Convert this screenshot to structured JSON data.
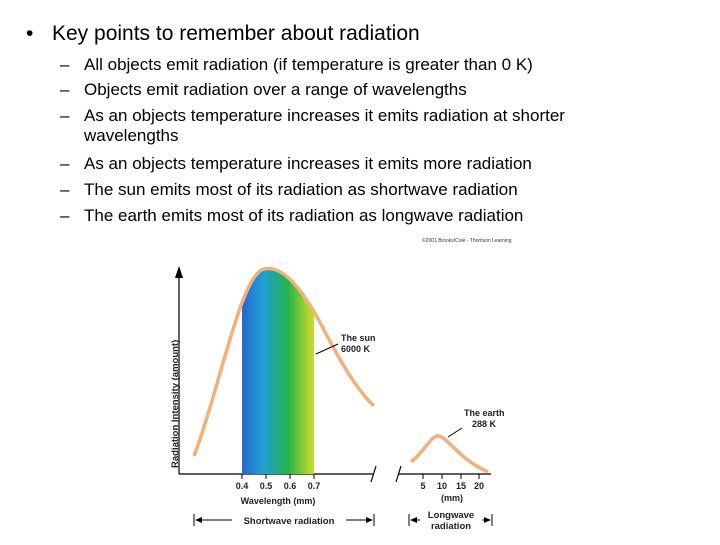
{
  "slide": {
    "main_bullet": "Key points to remember about radiation",
    "sub_bullets": [
      "All objects emit radiation (if temperature is greater than 0 K)",
      "Objects emit radiation over a range of wavelengths",
      "As an objects temperature increases it emits radiation at shorter wavelengths",
      "As an objects temperature increases it emits more radiation",
      "The sun emits most of its radiation as shortwave radiation",
      "The earth emits most of its radiation as longwave radiation"
    ]
  },
  "figure": {
    "copyright": "©2001 Brooks/Cole - Thomson Learning",
    "ylabel": "Radiation Intensity (amount)",
    "xlabel": "Wavelength (mm)",
    "sun_label": [
      "The sun",
      "6000 K"
    ],
    "earth_label": [
      "The earth",
      "288 K"
    ],
    "shortwave_ticks": [
      "0.4",
      "0.5",
      "0.6",
      "0.7"
    ],
    "longwave_ticks": [
      "5",
      "10",
      "15",
      "20"
    ],
    "longwave_unit": "(mm)",
    "shortwave_label": "Shortwave radiation",
    "longwave_label": [
      "Longwave",
      "radiation"
    ],
    "colors": {
      "curve": "#f4b07a",
      "spectrum": [
        "#e23b8a",
        "#7b3fb8",
        "#2a58c8",
        "#1ea0d8",
        "#23b24b",
        "#b6d631",
        "#f5e51c",
        "#f6a623",
        "#ef4a23"
      ]
    }
  }
}
